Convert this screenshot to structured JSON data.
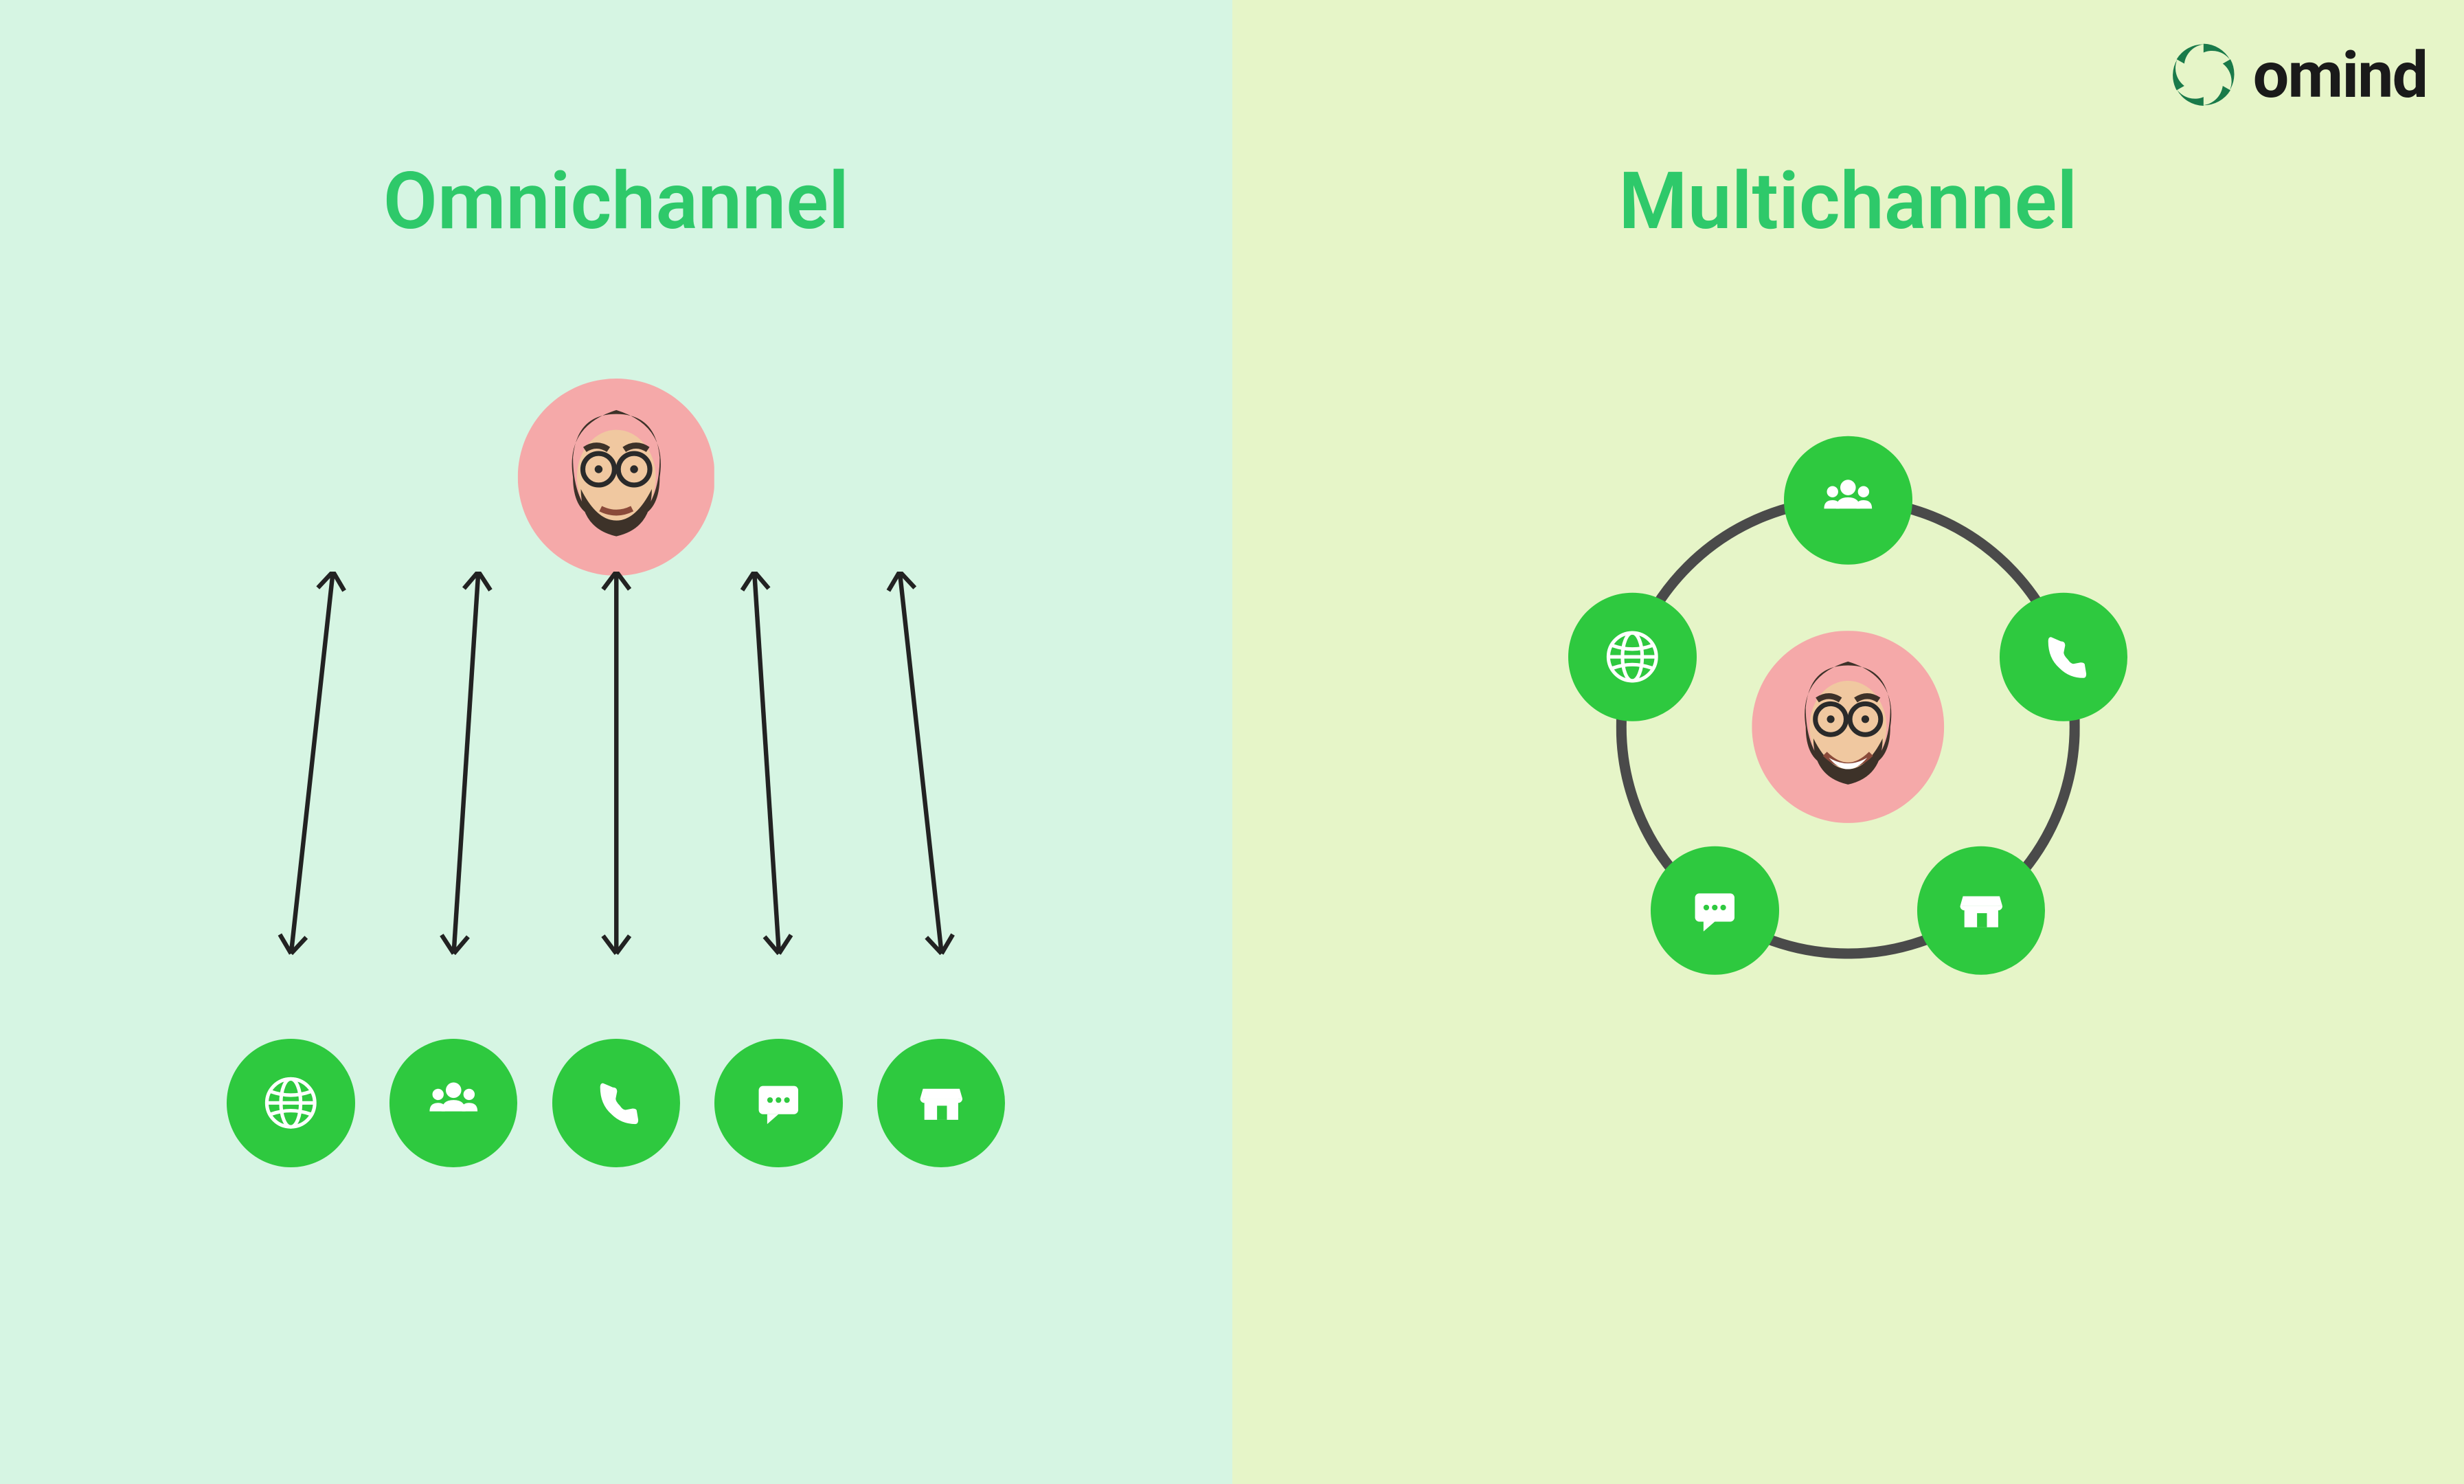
{
  "brand": {
    "name": "omind",
    "logo_color": "#1a7a4a",
    "text_color": "#1a1a1a"
  },
  "layout": {
    "left_bg": "#d6f5e3",
    "right_bg": "#e6f5c8",
    "title_color": "#2ec96a",
    "title_fontsize_vw": 3.2,
    "title_fontweight": 600
  },
  "avatar": {
    "bg_color": "#f5a9a9",
    "hair_color": "#3d3229",
    "skin_color": "#f0c8a0",
    "glasses_color": "#2a2a2a"
  },
  "channels": {
    "circle_color": "#2ec93f",
    "icon_color": "#ffffff",
    "icons": [
      "globe",
      "people",
      "phone",
      "chat",
      "store"
    ]
  },
  "omnichannel": {
    "title": "Omnichannel",
    "avatar_top_pct": 25.5,
    "avatar_size_vw": 8.0,
    "arrow_color": "#222222",
    "arrow_stroke_vw": 0.18,
    "arrows": [
      {
        "x1_vw": -11.5,
        "y1_vw": 0,
        "x2_vw": -13.2,
        "y2_vw": 15.5
      },
      {
        "x1_vw": -5.6,
        "y1_vw": 0,
        "x2_vw": -6.6,
        "y2_vw": 15.5
      },
      {
        "x1_vw": 0,
        "y1_vw": 0,
        "x2_vw": 0,
        "y2_vw": 15.5
      },
      {
        "x1_vw": 5.6,
        "y1_vw": 0,
        "x2_vw": 6.6,
        "y2_vw": 15.5
      },
      {
        "x1_vw": 11.5,
        "y1_vw": 0,
        "x2_vw": 13.2,
        "y2_vw": 15.5
      }
    ],
    "arrow_origin_top_pct": 38.5,
    "channel_row_top_pct": 70,
    "channel_circle_size_vw": 5.2,
    "channel_gap_vw": 1.4
  },
  "multichannel": {
    "title": "Multichannel",
    "center_top_pct": 49,
    "avatar_size_vw": 7.8,
    "ring_radius_vw": 9.2,
    "ring_stroke_vw": 0.42,
    "ring_color": "#4a4a4a",
    "channel_circle_size_vw": 5.2,
    "node_angles_deg": [
      270,
      198,
      342,
      126,
      54
    ],
    "node_icons": [
      "people",
      "globe",
      "phone",
      "chat",
      "store"
    ]
  }
}
